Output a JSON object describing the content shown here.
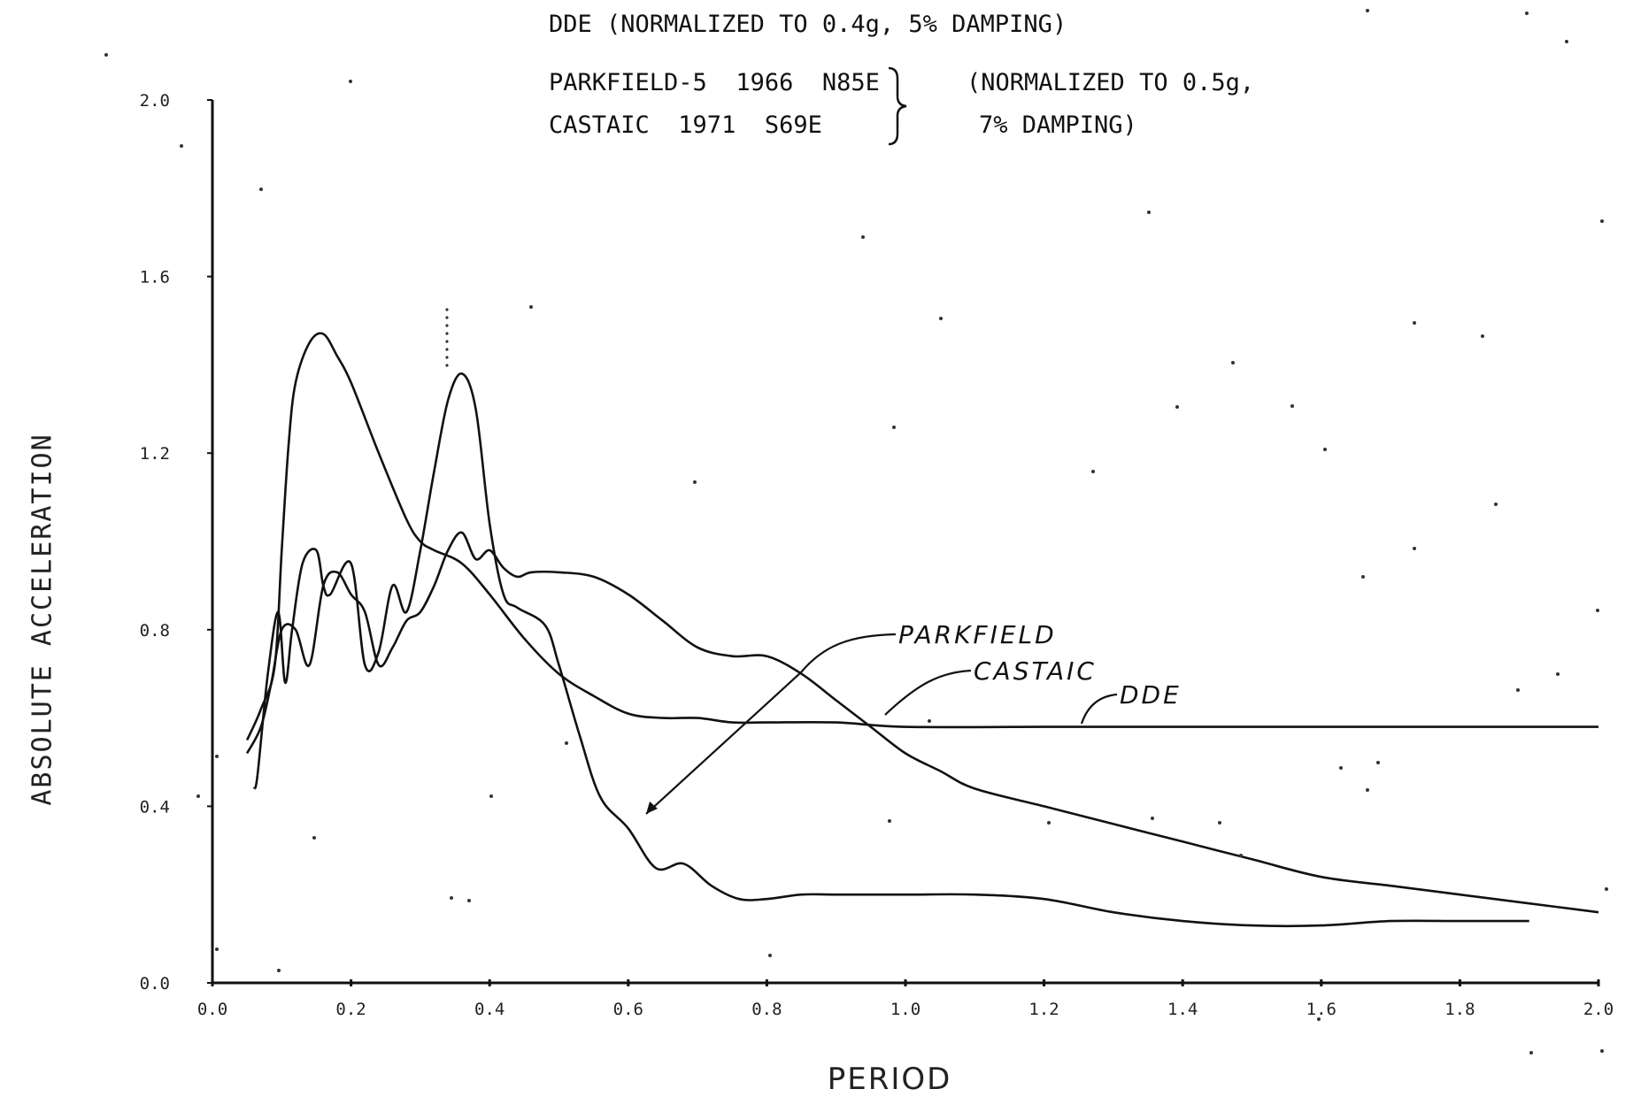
{
  "header": {
    "line1": "DDE (NORMALIZED TO 0.4g, 5% DAMPING)",
    "line2a": "PARKFIELD-5  1966  N85E",
    "line2b": "(NORMALIZED TO 0.5g,",
    "line3a": "CASTAIC  1971  S69E",
    "line3b": "7% DAMPING)"
  },
  "chart_data": {
    "type": "line",
    "xlabel": "PERIOD",
    "ylabel": "ABSOLUTE ACCELERATION",
    "xlim": [
      0.0,
      2.0
    ],
    "ylim": [
      0.0,
      2.0
    ],
    "x_ticks": [
      0.0,
      0.2,
      0.4,
      0.6,
      0.8,
      1.0,
      1.2,
      1.4,
      1.6,
      1.8,
      2.0
    ],
    "x_tick_labels": [
      "0.0",
      "0.2",
      "0.4",
      "0.6",
      "0.8",
      "1.0",
      "1.2",
      "1.4",
      "1.6",
      "1.8",
      "2.0"
    ],
    "y_ticks": [
      0.0,
      0.4,
      0.8,
      1.2,
      1.6,
      2.0
    ],
    "y_tick_labels": [
      "0.0",
      "0.4",
      "0.8",
      "1.2",
      "1.6",
      "2.0"
    ],
    "grid": false,
    "line_color": "#111111",
    "series": [
      {
        "name": "DDE",
        "x": [
          0.05,
          0.07,
          0.09,
          0.1,
          0.11,
          0.12,
          0.14,
          0.16,
          0.18,
          0.2,
          0.24,
          0.28,
          0.3,
          0.32,
          0.36,
          0.4,
          0.45,
          0.5,
          0.55,
          0.6,
          0.65,
          0.7,
          0.75,
          0.8,
          0.9,
          1.0,
          1.2,
          1.4,
          1.6,
          1.8,
          2.0
        ],
        "y": [
          0.55,
          0.62,
          0.72,
          0.98,
          1.22,
          1.36,
          1.45,
          1.47,
          1.42,
          1.36,
          1.2,
          1.05,
          1.0,
          0.98,
          0.95,
          0.88,
          0.78,
          0.7,
          0.65,
          0.61,
          0.6,
          0.6,
          0.59,
          0.59,
          0.59,
          0.58,
          0.58,
          0.58,
          0.58,
          0.58,
          0.58
        ]
      },
      {
        "name": "PARKFIELD",
        "x": [
          0.06,
          0.065,
          0.08,
          0.095,
          0.105,
          0.115,
          0.13,
          0.15,
          0.16,
          0.17,
          0.2,
          0.22,
          0.24,
          0.26,
          0.28,
          0.3,
          0.32,
          0.34,
          0.36,
          0.38,
          0.4,
          0.42,
          0.44,
          0.48,
          0.5,
          0.53,
          0.56,
          0.6,
          0.64,
          0.68,
          0.72,
          0.76,
          0.8,
          0.85,
          0.9,
          1.0,
          1.1,
          1.2,
          1.3,
          1.4,
          1.5,
          1.6,
          1.7,
          1.8,
          1.9
        ],
        "y": [
          0.44,
          0.47,
          0.7,
          0.84,
          0.68,
          0.8,
          0.95,
          0.98,
          0.9,
          0.88,
          0.95,
          0.72,
          0.75,
          0.9,
          0.84,
          0.98,
          1.16,
          1.32,
          1.38,
          1.3,
          1.04,
          0.88,
          0.85,
          0.81,
          0.72,
          0.56,
          0.42,
          0.35,
          0.26,
          0.27,
          0.22,
          0.19,
          0.19,
          0.2,
          0.2,
          0.2,
          0.2,
          0.19,
          0.16,
          0.14,
          0.13,
          0.13,
          0.14,
          0.14,
          0.14
        ]
      },
      {
        "name": "CASTAIC",
        "x": [
          0.05,
          0.07,
          0.085,
          0.1,
          0.12,
          0.14,
          0.16,
          0.18,
          0.2,
          0.22,
          0.24,
          0.26,
          0.28,
          0.3,
          0.32,
          0.34,
          0.36,
          0.38,
          0.4,
          0.42,
          0.44,
          0.46,
          0.5,
          0.55,
          0.6,
          0.65,
          0.7,
          0.75,
          0.8,
          0.85,
          0.9,
          0.95,
          1.0,
          1.05,
          1.1,
          1.2,
          1.3,
          1.4,
          1.5,
          1.6,
          1.7,
          1.8,
          1.9,
          2.0
        ],
        "y": [
          0.52,
          0.58,
          0.68,
          0.8,
          0.8,
          0.72,
          0.9,
          0.93,
          0.88,
          0.84,
          0.72,
          0.76,
          0.82,
          0.84,
          0.9,
          0.98,
          1.02,
          0.96,
          0.98,
          0.94,
          0.92,
          0.93,
          0.93,
          0.92,
          0.88,
          0.82,
          0.76,
          0.74,
          0.74,
          0.7,
          0.64,
          0.58,
          0.52,
          0.48,
          0.44,
          0.4,
          0.36,
          0.32,
          0.28,
          0.24,
          0.22,
          0.2,
          0.18,
          0.16
        ]
      }
    ],
    "annotations": [
      "PARKFIELD",
      "CASTAIC",
      "DDE"
    ]
  }
}
